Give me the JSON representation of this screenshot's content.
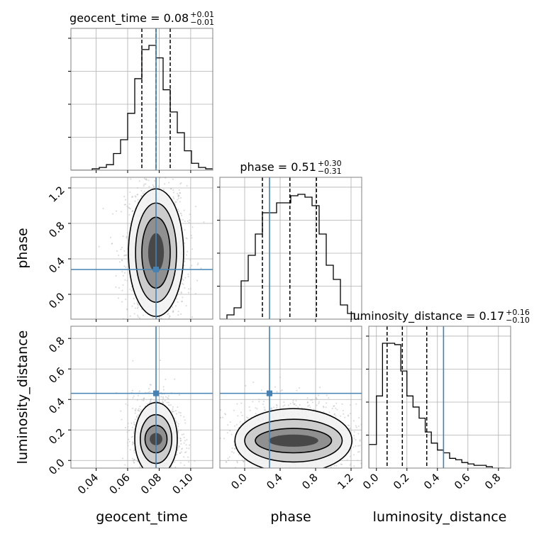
{
  "chart_data": {
    "type": "corner",
    "parameters": [
      "geocent_time",
      "phase",
      "luminosity_distance"
    ],
    "truths": {
      "geocent_time": 0.078,
      "phase": 0.28,
      "luminosity_distance": 0.44
    },
    "titles": [
      {
        "param": "geocent_time",
        "prefix": "geocent_time = 0.08",
        "plus": "+0.01",
        "minus": "−0.01"
      },
      {
        "param": "phase",
        "prefix": "phase = 0.51",
        "plus": "+0.30",
        "minus": "−0.31"
      },
      {
        "param": "luminosity_distance",
        "prefix": "luminosity_distance = 0.17",
        "plus": "+0.16",
        "minus": "−0.10"
      }
    ],
    "axes": {
      "geocent_time": {
        "label": "geocent_time",
        "range": [
          0.024,
          0.114
        ],
        "ticks": [
          0.04,
          0.06,
          0.08,
          0.1
        ],
        "tick_labels": [
          "0.04",
          "0.06",
          "0.08",
          "0.10"
        ]
      },
      "phase": {
        "label": "phase",
        "range": [
          -0.28,
          1.32
        ],
        "ticks": [
          0.0,
          0.4,
          0.8,
          1.2
        ],
        "tick_labels": [
          "0.0",
          "0.4",
          "0.8",
          "1.2"
        ]
      },
      "luminosity_distance": {
        "label": "luminosity_distance",
        "range": [
          -0.05,
          0.88
        ],
        "ticks": [
          0.0,
          0.2,
          0.4,
          0.6,
          0.8
        ],
        "tick_labels": [
          "0.0",
          "0.2",
          "0.4",
          "0.6",
          "0.8"
        ]
      }
    },
    "histograms": {
      "geocent_time": {
        "bin_edges": [
          0.024,
          0.0285,
          0.033,
          0.0375,
          0.042,
          0.0465,
          0.051,
          0.0555,
          0.06,
          0.0645,
          0.069,
          0.0735,
          0.078,
          0.0825,
          0.087,
          0.0915,
          0.096,
          0.1005,
          0.105,
          0.1095,
          0.114
        ],
        "counts": [
          0.0,
          0.0,
          0.0,
          0.01,
          0.02,
          0.04,
          0.12,
          0.22,
          0.41,
          0.66,
          0.87,
          0.9,
          0.81,
          0.58,
          0.42,
          0.27,
          0.14,
          0.05,
          0.02,
          0.01
        ],
        "quantiles": [
          0.069,
          0.078,
          0.087
        ]
      },
      "phase": {
        "bin_edges": [
          -0.28,
          -0.2,
          -0.12,
          -0.04,
          0.04,
          0.12,
          0.2,
          0.28,
          0.36,
          0.44,
          0.52,
          0.6,
          0.68,
          0.76,
          0.84,
          0.92,
          1.0,
          1.08,
          1.16,
          1.24,
          1.32
        ],
        "counts": [
          0.0,
          0.03,
          0.08,
          0.27,
          0.45,
          0.6,
          0.75,
          0.75,
          0.82,
          0.82,
          0.87,
          0.88,
          0.86,
          0.8,
          0.6,
          0.38,
          0.28,
          0.1,
          0.04,
          0.0
        ],
        "quantiles": [
          0.2,
          0.51,
          0.81
        ]
      },
      "luminosity_distance": {
        "bin_edges": [
          -0.05,
          0.0,
          0.04,
          0.08,
          0.12,
          0.16,
          0.2,
          0.24,
          0.28,
          0.32,
          0.36,
          0.4,
          0.44,
          0.48,
          0.52,
          0.56,
          0.6,
          0.64,
          0.68,
          0.72,
          0.76,
          0.8,
          0.84
        ],
        "counts": [
          0.17,
          0.52,
          0.9,
          0.9,
          0.89,
          0.7,
          0.52,
          0.44,
          0.36,
          0.26,
          0.18,
          0.13,
          0.11,
          0.07,
          0.06,
          0.04,
          0.03,
          0.02,
          0.02,
          0.01,
          0.0,
          0.0
        ],
        "quantiles": [
          0.07,
          0.17,
          0.33
        ]
      }
    },
    "contours": {
      "phase|geocent_time": {
        "x": "geocent_time",
        "y": "phase",
        "center": [
          0.078,
          0.47
        ],
        "levels": [
          {
            "rx": 0.005,
            "ry": 0.22
          },
          {
            "rx": 0.009,
            "ry": 0.4
          },
          {
            "rx": 0.013,
            "ry": 0.56
          },
          {
            "rx": 0.0175,
            "ry": 0.72
          }
        ]
      },
      "luminosity_distance|geocent_time": {
        "x": "geocent_time",
        "y": "luminosity_distance",
        "center": [
          0.078,
          0.14
        ],
        "levels": [
          {
            "rx": 0.004,
            "ry": 0.04
          },
          {
            "rx": 0.007,
            "ry": 0.09
          },
          {
            "rx": 0.01,
            "ry": 0.16
          },
          {
            "rx": 0.0135,
            "ry": 0.24
          }
        ]
      },
      "luminosity_distance|phase": {
        "x": "phase",
        "y": "luminosity_distance",
        "center": [
          0.55,
          0.13
        ],
        "levels": [
          {
            "rx": 0.28,
            "ry": 0.04
          },
          {
            "rx": 0.43,
            "ry": 0.08
          },
          {
            "rx": 0.55,
            "ry": 0.14
          },
          {
            "rx": 0.66,
            "ry": 0.21
          }
        ]
      }
    },
    "grid": true
  }
}
